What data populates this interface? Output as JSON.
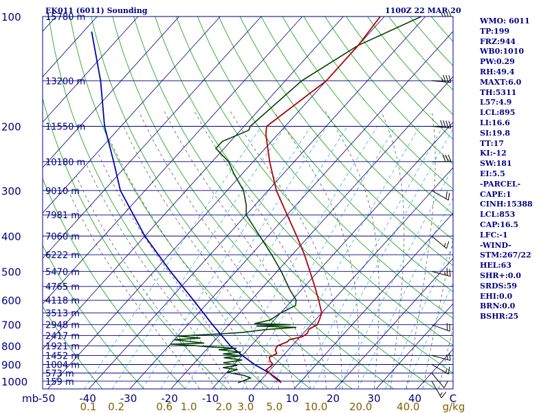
{
  "header": {
    "station": "EK011 (6011) Sounding",
    "time": "1100Z 22 MAR 20"
  },
  "indices": [
    "WMO: 6011",
    "TP:199",
    "FRZ:944",
    "WB0:1010",
    "PW:0.29",
    "RH:49.4",
    "MAXT:6.0",
    "TH:5311",
    "L57:4.9",
    "LCL:895",
    "LI:16.6",
    "SI:19.8",
    "TT:17",
    "KI:-12",
    "SW:181",
    "EI:5.5",
    "-PARCEL-",
    "CAPE:1",
    "CINH:15388",
    "LCL:853",
    "CAP:16.5",
    "LFC:-1",
    "-WIND-",
    "STM:267/22",
    "HEL:63",
    "SHR+:0.0",
    "SRDS:59",
    "EHI:0.0",
    "BRN:0.0",
    "BSHR:25"
  ],
  "chart_data": {
    "type": "line",
    "x_axis": {
      "unit_label": "mb",
      "tick_labels": [
        "-50",
        "-40",
        "-30",
        "-20",
        "-10",
        "0",
        "10",
        "20",
        "30",
        "40",
        "C"
      ],
      "temperature_range_c": [
        -50,
        50
      ]
    },
    "mixing_ratio_axis": {
      "unit_label": "g/kg",
      "tick_labels": [
        "0.1",
        "0.2",
        "0.6",
        "1.0",
        "2.0",
        "3.0",
        "5.0",
        "10.0",
        "20.0",
        "40.0"
      ],
      "values": [
        0.1,
        0.2,
        0.6,
        1.0,
        2.0,
        3.0,
        5.0,
        10.0,
        20.0,
        40.0
      ]
    },
    "y_axis": {
      "scale": "log-pressure",
      "range_mb": [
        1000,
        100
      ],
      "tick_labels": [
        "100",
        "200",
        "300",
        "400",
        "500",
        "600",
        "700",
        "800",
        "900",
        "1000"
      ],
      "ticks_mb": [
        100,
        200,
        300,
        400,
        500,
        600,
        700,
        800,
        900,
        1000
      ]
    },
    "height_labels": [
      {
        "p": 100,
        "label": "15780 m"
      },
      {
        "p": 150,
        "label": "13200 m"
      },
      {
        "p": 200,
        "label": "11550 m"
      },
      {
        "p": 250,
        "label": "10180 m"
      },
      {
        "p": 300,
        "label": "9010 m"
      },
      {
        "p": 350,
        "label": "7981 m"
      },
      {
        "p": 400,
        "label": "7060 m"
      },
      {
        "p": 450,
        "label": "6222 m"
      },
      {
        "p": 500,
        "label": "5470 m"
      },
      {
        "p": 550,
        "label": "4765 m"
      },
      {
        "p": 600,
        "label": "4118 m"
      },
      {
        "p": 650,
        "label": "3513 m"
      },
      {
        "p": 700,
        "label": "2948 m"
      },
      {
        "p": 750,
        "label": "2417 m"
      },
      {
        "p": 800,
        "label": "1921 m"
      },
      {
        "p": 850,
        "label": "1452 m"
      },
      {
        "p": 900,
        "label": "1004 m"
      },
      {
        "p": 950,
        "label": "573 m"
      },
      {
        "p": 1000,
        "label": "159 m"
      }
    ],
    "series": [
      {
        "key": "temperature",
        "color": "#b00000",
        "points": [
          {
            "p": 1010,
            "t": 5.5
          },
          {
            "p": 975,
            "t": 2.5
          },
          {
            "p": 950,
            "t": 0.5
          },
          {
            "p": 930,
            "t": -1.0
          },
          {
            "p": 900,
            "t": -0.5
          },
          {
            "p": 880,
            "t": -2.0
          },
          {
            "p": 860,
            "t": -3.0
          },
          {
            "p": 840,
            "t": -2.0
          },
          {
            "p": 820,
            "t": -3.2
          },
          {
            "p": 800,
            "t": -3.5
          },
          {
            "p": 780,
            "t": -2.0
          },
          {
            "p": 770,
            "t": -2.0
          },
          {
            "p": 755,
            "t": 0.5
          },
          {
            "p": 740,
            "t": 1.0
          },
          {
            "p": 720,
            "t": 0.5
          },
          {
            "p": 700,
            "t": 1.5
          },
          {
            "p": 680,
            "t": 1.0
          },
          {
            "p": 650,
            "t": 0.0
          },
          {
            "p": 600,
            "t": -3.5
          },
          {
            "p": 550,
            "t": -7.5
          },
          {
            "p": 500,
            "t": -12.0
          },
          {
            "p": 450,
            "t": -17.0
          },
          {
            "p": 400,
            "t": -23.0
          },
          {
            "p": 350,
            "t": -30.0
          },
          {
            "p": 300,
            "t": -38.0
          },
          {
            "p": 250,
            "t": -46.0
          },
          {
            "p": 210,
            "t": -53.0
          },
          {
            "p": 200,
            "t": -54.5
          },
          {
            "p": 150,
            "t": -50.0
          },
          {
            "p": 120,
            "t": -50.0
          },
          {
            "p": 100,
            "t": -51.0
          }
        ]
      },
      {
        "key": "dewpoint",
        "color": "#004000",
        "points": [
          {
            "p": 1010,
            "t": -5.0
          },
          {
            "p": 980,
            "t": -3.0
          },
          {
            "p": 965,
            "t": -5.0
          },
          {
            "p": 945,
            "t": -10.0
          },
          {
            "p": 930,
            "t": -8.0
          },
          {
            "p": 918,
            "t": -12.0
          },
          {
            "p": 905,
            "t": -9.0
          },
          {
            "p": 890,
            "t": -13.0
          },
          {
            "p": 875,
            "t": -9.0
          },
          {
            "p": 862,
            "t": -14.0
          },
          {
            "p": 852,
            "t": -10.0
          },
          {
            "p": 842,
            "t": -15.0
          },
          {
            "p": 832,
            "t": -11.0
          },
          {
            "p": 820,
            "t": -17.0
          },
          {
            "p": 812,
            "t": -13.0
          },
          {
            "p": 805,
            "t": -20.0
          },
          {
            "p": 798,
            "t": -24.0
          },
          {
            "p": 792,
            "t": -30.0
          },
          {
            "p": 786,
            "t": -22.0
          },
          {
            "p": 778,
            "t": -26.0
          },
          {
            "p": 770,
            "t": -30.0
          },
          {
            "p": 762,
            "t": -24.0
          },
          {
            "p": 752,
            "t": -30.0
          },
          {
            "p": 742,
            "t": -20.0
          },
          {
            "p": 735,
            "t": -15.0
          },
          {
            "p": 722,
            "t": -10.0
          },
          {
            "p": 712,
            "t": -3.0
          },
          {
            "p": 706,
            "t": -13.0
          },
          {
            "p": 700,
            "t": -5.0
          },
          {
            "p": 695,
            "t": -14.0
          },
          {
            "p": 680,
            "t": -11.0
          },
          {
            "p": 650,
            "t": -10.0
          },
          {
            "p": 620,
            "t": -8.0
          },
          {
            "p": 600,
            "t": -9.0
          },
          {
            "p": 560,
            "t": -13.0
          },
          {
            "p": 500,
            "t": -19.0
          },
          {
            "p": 450,
            "t": -25.0
          },
          {
            "p": 400,
            "t": -32.0
          },
          {
            "p": 350,
            "t": -40.0
          },
          {
            "p": 330,
            "t": -42.0
          },
          {
            "p": 300,
            "t": -46.0
          },
          {
            "p": 270,
            "t": -52.0
          },
          {
            "p": 250,
            "t": -56.0
          },
          {
            "p": 230,
            "t": -62.0
          },
          {
            "p": 220,
            "t": -62.0
          },
          {
            "p": 205,
            "t": -58.0
          },
          {
            "p": 200,
            "t": -58.5
          },
          {
            "p": 150,
            "t": -56.0
          },
          {
            "p": 120,
            "t": -50.0
          },
          {
            "p": 100,
            "t": -41.0
          }
        ]
      },
      {
        "key": "parcel",
        "color": "#0000b0",
        "points": [
          {
            "p": 1000,
            "t": 5.0
          },
          {
            "p": 950,
            "t": 0.5
          },
          {
            "p": 900,
            "t": -5.0
          },
          {
            "p": 850,
            "t": -10.0
          },
          {
            "p": 800,
            "t": -15.0
          },
          {
            "p": 700,
            "t": -24.0
          },
          {
            "p": 600,
            "t": -34.0
          },
          {
            "p": 500,
            "t": -46.0
          },
          {
            "p": 400,
            "t": -60.0
          },
          {
            "p": 300,
            "t": -76.0
          },
          {
            "p": 250,
            "t": -84.0
          },
          {
            "p": 200,
            "t": -94.0
          },
          {
            "p": 150,
            "t": -105.0
          },
          {
            "p": 110,
            "t": -118.0
          }
        ]
      }
    ],
    "wind_barbs": [
      {
        "p": 100,
        "dir": 270,
        "spd": 35
      },
      {
        "p": 150,
        "dir": 275,
        "spd": 35
      },
      {
        "p": 200,
        "dir": 275,
        "spd": 40
      },
      {
        "p": 250,
        "dir": 270,
        "spd": 30
      },
      {
        "p": 300,
        "dir": 300,
        "spd": 20
      },
      {
        "p": 400,
        "dir": 310,
        "spd": 15
      },
      {
        "p": 500,
        "dir": 285,
        "spd": 25
      },
      {
        "p": 700,
        "dir": 290,
        "spd": 20
      },
      {
        "p": 850,
        "dir": 285,
        "spd": 15
      },
      {
        "p": 900,
        "dir": 300,
        "spd": 15
      },
      {
        "p": 950,
        "dir": 320,
        "spd": 10
      },
      {
        "p": 1000,
        "dir": 330,
        "spd": 15
      }
    ],
    "colors": {
      "isobar": "#000080",
      "isotherm": "#1a1a80",
      "dry_adiabat": "#22aa22",
      "moist_adiabat": "#606060",
      "mixing_ratio": "#44aadd",
      "temperature": "#b00000",
      "dewpoint": "#004000",
      "parcel": "#0000b0",
      "mixing_label": "#806000"
    }
  }
}
